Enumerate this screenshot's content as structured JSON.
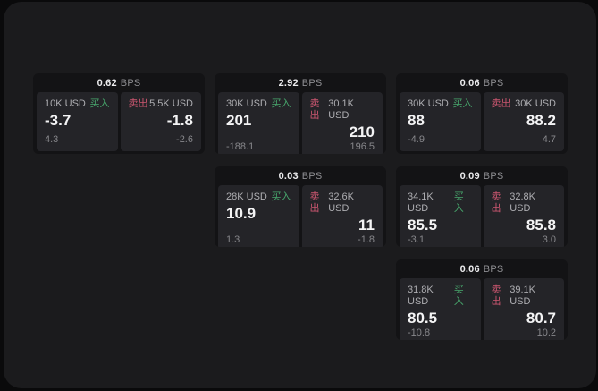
{
  "labels": {
    "bps_unit": "BPS",
    "buy": "买入",
    "sell": "卖出"
  },
  "colors": {
    "background": "#0a0a0b",
    "panel": "#1b1b1d",
    "card": "#131315",
    "subpanel": "#242428",
    "buy_accent": "#48a86d",
    "sell_accent": "#cb5670"
  },
  "cards": [
    {
      "bps": "0.62",
      "buy": {
        "amount": "10K USD",
        "price": "-3.7",
        "delta": "4.3"
      },
      "sell": {
        "amount": "5.5K USD",
        "price": "-1.8",
        "delta": "-2.6"
      }
    },
    {
      "bps": "2.92",
      "buy": {
        "amount": "30K USD",
        "price": "201",
        "delta": "-188.1"
      },
      "sell": {
        "amount": "30.1K USD",
        "price": "210",
        "delta": "196.5"
      }
    },
    {
      "bps": "0.06",
      "buy": {
        "amount": "30K USD",
        "price": "88",
        "delta": "-4.9"
      },
      "sell": {
        "amount": "30K USD",
        "price": "88.2",
        "delta": "4.7"
      }
    },
    {
      "bps": "0.03",
      "buy": {
        "amount": "28K USD",
        "price": "10.9",
        "delta": "1.3"
      },
      "sell": {
        "amount": "32.6K USD",
        "price": "11",
        "delta": "-1.8"
      }
    },
    {
      "bps": "0.09",
      "buy": {
        "amount": "34.1K USD",
        "price": "85.5",
        "delta": "-3.1"
      },
      "sell": {
        "amount": "32.8K USD",
        "price": "85.8",
        "delta": "3.0"
      }
    },
    {
      "bps": "0.06",
      "buy": {
        "amount": "31.8K USD",
        "price": "80.5",
        "delta": "-10.8"
      },
      "sell": {
        "amount": "39.1K USD",
        "price": "80.7",
        "delta": "10.2"
      }
    }
  ]
}
